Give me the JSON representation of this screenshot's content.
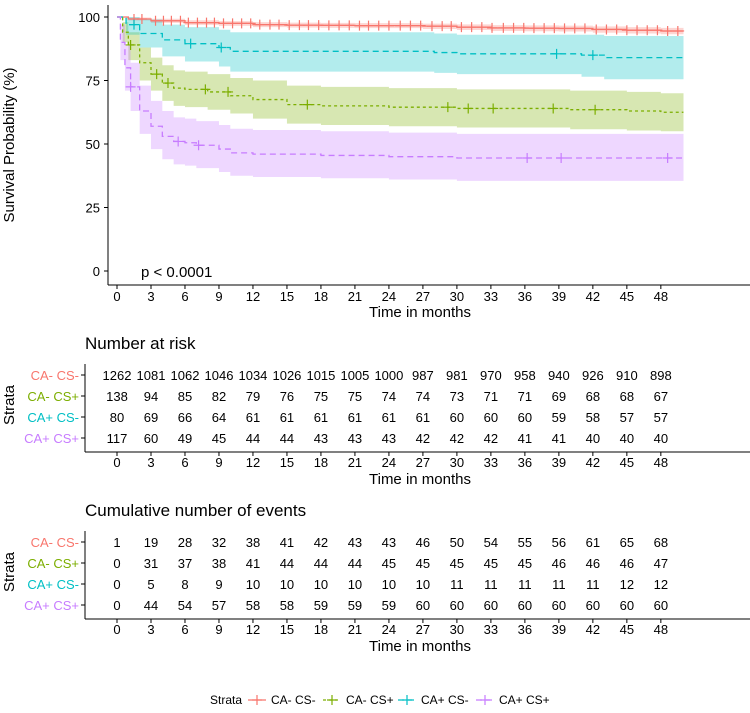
{
  "chart_data": {
    "type": "line",
    "subtype": "kaplan-meier",
    "ylabel": "Survival Probability (%)",
    "xlabel": "Time in months",
    "xlim": [
      0,
      50
    ],
    "ylim": [
      0,
      100
    ],
    "xticks": [
      0,
      3,
      6,
      9,
      12,
      15,
      18,
      21,
      24,
      27,
      30,
      33,
      36,
      39,
      42,
      45,
      48
    ],
    "yticks": [
      0,
      25,
      50,
      75,
      100
    ],
    "pvalue": "p < 0.0001",
    "legend_title": "Strata",
    "colors": [
      "#F8766D",
      "#7CAE00",
      "#00BFC4",
      "#C77CFF"
    ],
    "series": [
      {
        "name": "CA- CS-",
        "steps": [
          [
            0,
            100
          ],
          [
            1,
            99.2
          ],
          [
            3,
            98.5
          ],
          [
            6,
            97.8
          ],
          [
            9,
            97.5
          ],
          [
            12,
            97.0
          ],
          [
            15,
            96.8
          ],
          [
            18,
            96.7
          ],
          [
            21,
            96.6
          ],
          [
            24,
            96.6
          ],
          [
            27,
            96.4
          ],
          [
            30,
            96.0
          ],
          [
            33,
            95.7
          ],
          [
            36,
            95.6
          ],
          [
            39,
            95.5
          ],
          [
            42,
            95.1
          ],
          [
            45,
            94.8
          ],
          [
            48,
            94.5
          ],
          [
            50,
            94.3
          ]
        ],
        "ci_upper": [
          100,
          99.8,
          99.3,
          98.7,
          98.4,
          98.0,
          97.8,
          97.7,
          97.6,
          97.6,
          97.4,
          97.1,
          96.8,
          96.7,
          96.6,
          96.3,
          96.0,
          95.7,
          95.5
        ],
        "ci_lower": [
          100,
          98.6,
          97.7,
          96.9,
          96.5,
          96.0,
          95.8,
          95.7,
          95.6,
          95.6,
          95.3,
          94.9,
          94.5,
          94.4,
          94.3,
          93.8,
          93.5,
          93.2,
          93.0
        ],
        "censor_times": [
          1.5,
          2.2,
          3.4,
          4.1,
          4.8,
          5.6,
          6.3,
          7.1,
          7.9,
          8.6,
          9.4,
          10.2,
          11.0,
          11.8,
          12.6,
          13.5,
          14.3,
          15.2,
          16.1,
          16.9,
          17.8,
          18.7,
          19.6,
          20.5,
          21.4,
          22.2,
          23.1,
          24.0,
          25.0,
          25.9,
          26.8,
          27.8,
          28.7,
          29.5,
          30.4,
          31.3,
          32.2,
          33.1,
          34.1,
          35.0,
          35.9,
          36.8,
          37.7,
          38.6,
          39.5,
          40.4,
          41.3,
          42.3,
          43.2,
          44.1,
          45.0,
          45.9,
          46.8,
          47.7,
          48.6,
          49.5
        ]
      },
      {
        "name": "CA- CS+",
        "steps": [
          [
            0,
            100
          ],
          [
            0.5,
            94
          ],
          [
            1,
            89
          ],
          [
            2,
            82
          ],
          [
            3,
            77.5
          ],
          [
            4,
            74.0
          ],
          [
            5,
            72.0
          ],
          [
            6,
            71.5
          ],
          [
            8,
            70.5
          ],
          [
            10,
            69.0
          ],
          [
            12,
            67.5
          ],
          [
            15,
            65.5
          ],
          [
            18,
            65.0
          ],
          [
            21,
            65.0
          ],
          [
            24,
            64.5
          ],
          [
            30,
            64.0
          ],
          [
            36,
            64.0
          ],
          [
            40,
            63.5
          ],
          [
            45,
            63.0
          ],
          [
            48,
            62.5
          ],
          [
            50,
            62.5
          ]
        ],
        "ci_upper": [
          100,
          98,
          94,
          88,
          84,
          81,
          79,
          78.5,
          77.5,
          76,
          75,
          73,
          72.5,
          72.5,
          72,
          71.5,
          71.5,
          71,
          70.5,
          70,
          70
        ],
        "ci_lower": [
          100,
          90,
          83,
          75,
          71,
          67,
          65,
          64.5,
          63.5,
          62,
          60,
          58,
          57.5,
          57.5,
          57,
          56.5,
          56.5,
          55.8,
          55.3,
          55,
          55
        ],
        "censor_times": [
          1.2,
          3.5,
          4.5,
          7.8,
          9.8,
          16.8,
          29.2,
          31.0,
          33.2,
          38.5,
          42.2
        ]
      },
      {
        "name": "CA+ CS-",
        "steps": [
          [
            0,
            100
          ],
          [
            0.8,
            97
          ],
          [
            2,
            93.5
          ],
          [
            4,
            91
          ],
          [
            6,
            89.5
          ],
          [
            9,
            88
          ],
          [
            10,
            86.5
          ],
          [
            15,
            86.5
          ],
          [
            20,
            86.5
          ],
          [
            25,
            86.5
          ],
          [
            28,
            86.0
          ],
          [
            30,
            85.5
          ],
          [
            37,
            85.5
          ],
          [
            41,
            85.0
          ],
          [
            43,
            84.0
          ],
          [
            50,
            84.0
          ]
        ],
        "ci_upper": [
          100,
          100,
          99,
          97,
          96,
          95,
          94,
          94,
          94,
          94,
          93.5,
          93,
          93,
          93,
          92.5,
          92.5
        ],
        "ci_lower": [
          100,
          93,
          88,
          84.5,
          82.5,
          80.5,
          78.5,
          78.5,
          78.5,
          78.5,
          78,
          77.5,
          77.5,
          76.5,
          75.5,
          75.5
        ],
        "censor_times": [
          1.5,
          6.5,
          9.2,
          38.8,
          42.0
        ]
      },
      {
        "name": "CA+ CS+",
        "steps": [
          [
            0,
            100
          ],
          [
            0.3,
            90
          ],
          [
            0.7,
            80
          ],
          [
            1.2,
            72.5
          ],
          [
            2,
            63
          ],
          [
            3,
            57
          ],
          [
            4,
            53
          ],
          [
            5,
            51
          ],
          [
            6,
            50.5
          ],
          [
            7,
            49.5
          ],
          [
            9,
            48
          ],
          [
            10,
            46.5
          ],
          [
            12,
            46
          ],
          [
            18,
            45.5
          ],
          [
            24,
            45
          ],
          [
            30,
            44.5
          ],
          [
            36,
            44.5
          ],
          [
            40,
            44.5
          ],
          [
            50,
            44.5
          ]
        ],
        "ci_upper": [
          100,
          97,
          89,
          82,
          73,
          67,
          63,
          60.5,
          60,
          59,
          57.5,
          56,
          55.5,
          55,
          54.5,
          54,
          54,
          54,
          54
        ],
        "ci_lower": [
          100,
          83,
          71,
          63,
          54,
          48,
          44,
          42,
          41.5,
          40.5,
          39,
          37.5,
          37,
          36.5,
          36,
          35.5,
          35.5,
          35.5,
          35.5
        ],
        "censor_times": [
          1.2,
          5.4,
          7.2,
          36.2,
          39.2,
          48.6
        ]
      }
    ],
    "risk_table": {
      "title": "Number at risk",
      "ylabel": "Strata",
      "xlabel": "Time in months",
      "rows": [
        {
          "name": "CA- CS-",
          "values": [
            1262,
            1081,
            1062,
            1046,
            1034,
            1026,
            1015,
            1005,
            1000,
            987,
            981,
            970,
            958,
            940,
            926,
            910,
            898
          ]
        },
        {
          "name": "CA- CS+",
          "values": [
            138,
            94,
            85,
            82,
            79,
            76,
            75,
            75,
            74,
            74,
            73,
            71,
            71,
            69,
            68,
            68,
            67
          ]
        },
        {
          "name": "CA+ CS-",
          "values": [
            80,
            69,
            66,
            64,
            61,
            61,
            61,
            61,
            61,
            61,
            60,
            60,
            60,
            59,
            58,
            57,
            57
          ]
        },
        {
          "name": "CA+ CS+",
          "values": [
            117,
            60,
            49,
            45,
            44,
            44,
            43,
            43,
            43,
            42,
            42,
            42,
            41,
            41,
            40,
            40,
            40
          ]
        }
      ]
    },
    "events_table": {
      "title": "Cumulative number of events",
      "ylabel": "Strata",
      "xlabel": "Time in months",
      "rows": [
        {
          "name": "CA- CS-",
          "values": [
            1,
            19,
            28,
            32,
            38,
            41,
            42,
            43,
            43,
            46,
            50,
            54,
            55,
            56,
            61,
            65,
            68
          ]
        },
        {
          "name": "CA- CS+",
          "values": [
            0,
            31,
            37,
            38,
            41,
            44,
            44,
            44,
            45,
            45,
            45,
            45,
            45,
            46,
            46,
            46,
            47
          ]
        },
        {
          "name": "CA+ CS-",
          "values": [
            0,
            5,
            8,
            9,
            10,
            10,
            10,
            10,
            10,
            10,
            11,
            11,
            11,
            11,
            11,
            12,
            12
          ]
        },
        {
          "name": "CA+ CS+",
          "values": [
            0,
            44,
            54,
            57,
            58,
            58,
            59,
            59,
            59,
            60,
            60,
            60,
            60,
            60,
            60,
            60,
            60
          ]
        }
      ]
    }
  }
}
